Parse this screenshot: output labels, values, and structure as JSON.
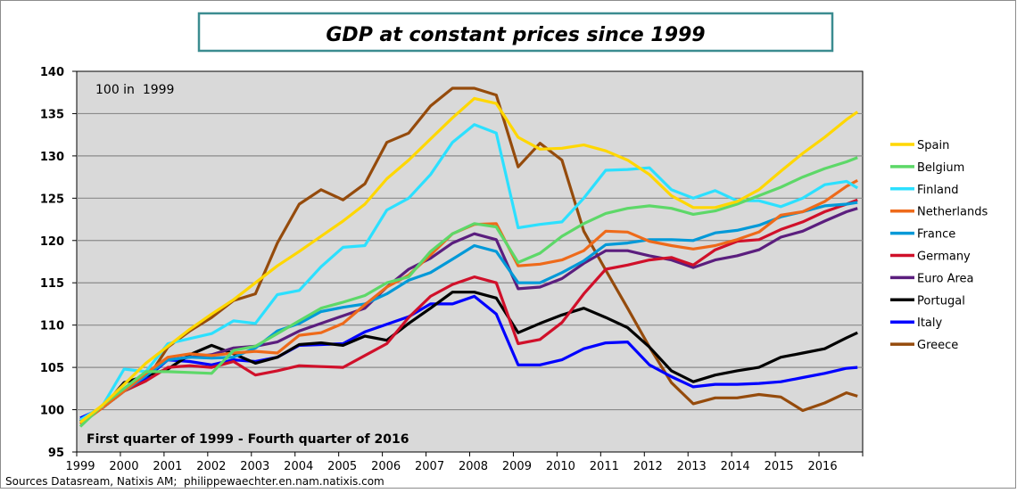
{
  "chart_data": {
    "type": "line",
    "title": "GDP at constant prices since 1999",
    "annotation": "100 in  1999",
    "period_note": "First quarter of 1999 - Fourth quarter of 2016",
    "source": "Sources Datasream, Natixis AM;  philippewaechter.en.nam.natixis.com",
    "xlabel": "",
    "ylabel": "",
    "ylim": [
      95,
      140
    ],
    "yticks": [
      "95",
      "100",
      "105",
      "110",
      "115",
      "120",
      "125",
      "130",
      "135",
      "140"
    ],
    "xticks": [
      "1999",
      "2000",
      "2001",
      "2002",
      "2003",
      "2004",
      "2005",
      "2006",
      "2007",
      "2008",
      "2009",
      "2010",
      "2011",
      "2012",
      "2013",
      "2014",
      "2015",
      "2016"
    ],
    "grid": true,
    "legend": "right",
    "x": [
      "1999Q1",
      "1999Q3",
      "2000Q1",
      "2000Q3",
      "2001Q1",
      "2001Q3",
      "2002Q1",
      "2002Q3",
      "2003Q1",
      "2003Q3",
      "2004Q1",
      "2004Q3",
      "2005Q1",
      "2005Q3",
      "2006Q1",
      "2006Q3",
      "2007Q1",
      "2007Q3",
      "2008Q1",
      "2008Q3",
      "2009Q1",
      "2009Q3",
      "2010Q1",
      "2010Q3",
      "2011Q1",
      "2011Q3",
      "2012Q1",
      "2012Q3",
      "2013Q1",
      "2013Q3",
      "2014Q1",
      "2014Q3",
      "2015Q1",
      "2015Q3",
      "2016Q1",
      "2016Q3",
      "2016Q4"
    ],
    "series": [
      {
        "name": "Spain",
        "color": "#FFD700",
        "values": [
          98.5,
          100.5,
          103,
          105.5,
          107.5,
          109.5,
          111.3,
          113,
          115,
          117,
          118.7,
          120.5,
          122.3,
          124.3,
          127.3,
          129.5,
          132,
          134.5,
          136.8,
          136.2,
          132.2,
          130.8,
          130.9,
          131.3,
          130.6,
          129.5,
          127.8,
          125.3,
          123.9,
          123.9,
          124.6,
          126,
          128.2,
          130.3,
          132.2,
          134.3,
          135.2
        ]
      },
      {
        "name": "Belgium",
        "color": "#5DD868",
        "values": [
          98,
          100.5,
          102.5,
          104.5,
          104.5,
          104.4,
          104.3,
          107,
          107.5,
          109,
          110.5,
          112,
          112.7,
          113.5,
          115,
          115.7,
          118.7,
          120.8,
          122,
          121.6,
          117.4,
          118.5,
          120.5,
          122,
          123.2,
          123.8,
          124.1,
          123.8,
          123.1,
          123.5,
          124.3,
          125.3,
          126.3,
          127.5,
          128.5,
          129.3,
          129.8
        ]
      },
      {
        "name": "Finland",
        "color": "#2CE0FF",
        "values": [
          98.8,
          100.4,
          104.8,
          104.5,
          107.8,
          108.4,
          109,
          110.5,
          110.2,
          113.6,
          114.1,
          116.9,
          119.2,
          119.4,
          123.6,
          125,
          127.8,
          131.6,
          133.7,
          132.7,
          121.5,
          121.9,
          122.2,
          125,
          128.3,
          128.4,
          128.6,
          126,
          125,
          125.9,
          124.7,
          124.7,
          124,
          125,
          126.6,
          127,
          126.2
        ]
      },
      {
        "name": "Netherlands",
        "color": "#EE6A1A",
        "values": [
          98.3,
          100.2,
          102.2,
          104.3,
          106.2,
          106.6,
          106.4,
          106.7,
          106.9,
          106.7,
          108.8,
          109.1,
          110.2,
          112.4,
          114.5,
          115.9,
          118.3,
          120.8,
          121.9,
          122,
          117,
          117.2,
          117.7,
          118.8,
          121.1,
          121,
          119.9,
          119.4,
          119,
          119.4,
          120.1,
          121,
          123,
          123.4,
          124.6,
          126.4,
          127.1
        ]
      },
      {
        "name": "France",
        "color": "#0099D8",
        "values": [
          98.6,
          100.2,
          102.2,
          104,
          105.9,
          106.2,
          106.1,
          106.2,
          107.3,
          109.3,
          110.2,
          111.6,
          112.1,
          112.5,
          113.7,
          115.3,
          116.2,
          117.8,
          119.4,
          118.7,
          115,
          115,
          116.2,
          117.6,
          119.5,
          119.7,
          120.1,
          120.1,
          120,
          120.9,
          121.2,
          121.8,
          122.8,
          123.4,
          124.1,
          124.3,
          124.5
        ]
      },
      {
        "name": "Germany",
        "color": "#D0102A",
        "values": [
          98.6,
          100.2,
          102.2,
          103.4,
          105,
          105.2,
          105,
          105.7,
          104.1,
          104.6,
          105.2,
          105.1,
          105,
          106.4,
          107.8,
          110.9,
          113.4,
          114.8,
          115.7,
          115,
          107.8,
          108.3,
          110.3,
          113.7,
          116.6,
          117.1,
          117.7,
          118,
          117.1,
          118.9,
          119.9,
          120.1,
          121.3,
          122.2,
          123.4,
          124.3,
          124.8
        ]
      },
      {
        "name": "Euro Area",
        "color": "#5B1E7E",
        "values": [
          98.8,
          100.2,
          102.2,
          104.3,
          105.9,
          106.2,
          106.5,
          107.3,
          107.5,
          108,
          109.3,
          110.2,
          111.1,
          112,
          114.5,
          116.6,
          117.9,
          119.7,
          120.8,
          120.1,
          114.3,
          114.5,
          115.5,
          117.3,
          118.8,
          118.8,
          118.2,
          117.7,
          116.8,
          117.7,
          118.2,
          118.9,
          120.4,
          121.1,
          122.3,
          123.4,
          123.8
        ]
      },
      {
        "name": "Portugal",
        "color": "#000000",
        "values": [
          98.6,
          100.2,
          103.2,
          104,
          104.8,
          106.5,
          107.6,
          106.6,
          105.5,
          106.2,
          107.7,
          107.9,
          107.6,
          108.7,
          108.2,
          110.2,
          112,
          113.9,
          113.9,
          113.2,
          109.1,
          110.2,
          111.2,
          112,
          110.9,
          109.7,
          107.4,
          104.6,
          103.3,
          104.1,
          104.6,
          105,
          106.2,
          106.7,
          107.2,
          108.5,
          109.1
        ]
      },
      {
        "name": "Italy",
        "color": "#0000FF",
        "values": [
          99,
          100.2,
          102.3,
          103.7,
          105.9,
          105.7,
          105.3,
          105.9,
          105.7,
          106.2,
          107.6,
          107.7,
          107.8,
          109.2,
          110.1,
          111,
          112.5,
          112.5,
          113.4,
          111.3,
          105.3,
          105.3,
          105.9,
          107.2,
          107.9,
          108,
          105.3,
          103.9,
          102.7,
          103,
          103,
          103.1,
          103.3,
          103.8,
          104.3,
          104.9,
          105
        ]
      },
      {
        "name": "Greece",
        "color": "#954B0C",
        "values": [
          98.8,
          100.2,
          102.2,
          103.4,
          107.4,
          109.3,
          110.9,
          112.9,
          113.7,
          119.7,
          124.3,
          126,
          124.8,
          126.7,
          131.6,
          132.7,
          135.9,
          138,
          138,
          137.2,
          128.7,
          131.5,
          129.5,
          121.1,
          116.5,
          112,
          107.4,
          103.2,
          100.7,
          101.4,
          101.4,
          101.8,
          101.5,
          99.9,
          100.8,
          102,
          101.6
        ]
      }
    ]
  }
}
